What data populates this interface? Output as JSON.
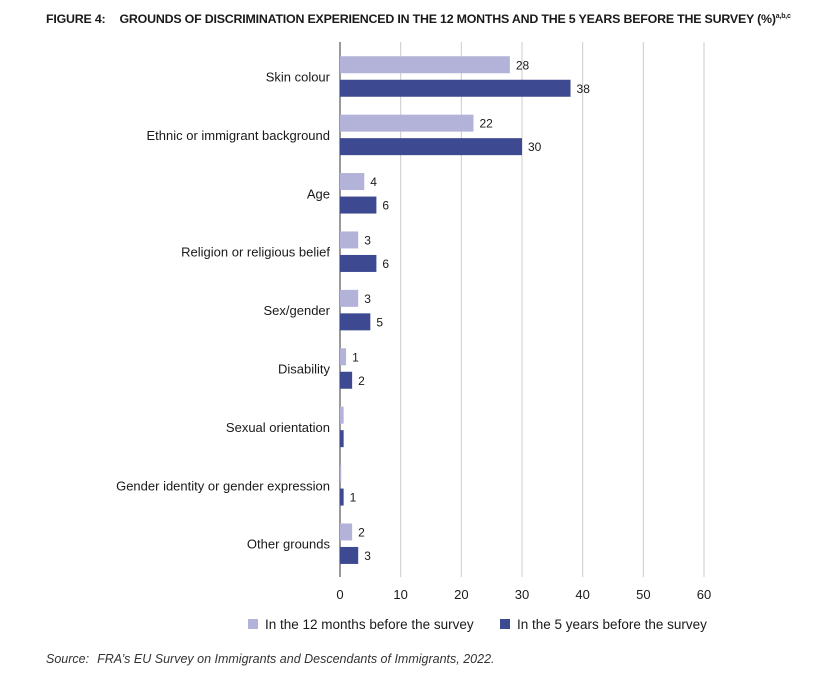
{
  "figure": {
    "number": "FIGURE 4:",
    "title": "GROUNDS OF DISCRIMINATION EXPERIENCED IN THE 12 MONTHS AND THE 5 YEARS BEFORE THE SURVEY (%)",
    "superscript": "a,b,c"
  },
  "source": {
    "label": "Source:",
    "text": "FRA’s EU Survey on Immigrants and Descendants of Immigrants, 2022."
  },
  "colors": {
    "series_12_months": "#b3b3d9",
    "series_5_years": "#3d4a91",
    "grid": "#cccccc",
    "axis": "#333333"
  },
  "chart_data": {
    "type": "bar",
    "orientation": "horizontal",
    "title": "Grounds of discrimination experienced in the 12 months and the 5 years before the survey (%)",
    "categories": [
      "Skin colour",
      "Ethnic or immigrant background",
      "Age",
      "Religion or religious belief",
      "Sex/gender",
      "Disability",
      "Sexual orientation",
      "Gender identity or gender expression",
      "Other grounds"
    ],
    "series": [
      {
        "name": "In the 12 months before the survey",
        "values": [
          28,
          22,
          4,
          3,
          3,
          1,
          0.6,
          0.2,
          2
        ],
        "labels": [
          "28",
          "22",
          "4",
          "3",
          "3",
          "1",
          "",
          "",
          "2"
        ]
      },
      {
        "name": "In the 5 years before the survey",
        "values": [
          38,
          30,
          6,
          6,
          5,
          2,
          0.6,
          0.6,
          3
        ],
        "labels": [
          "38",
          "30",
          "6",
          "6",
          "5",
          "2",
          "",
          "1",
          "3"
        ]
      }
    ],
    "xlim": [
      0,
      60
    ],
    "xticks": [
      "0",
      "10",
      "20",
      "30",
      "40",
      "50",
      "60"
    ],
    "grid": true,
    "legend": "bottom"
  }
}
